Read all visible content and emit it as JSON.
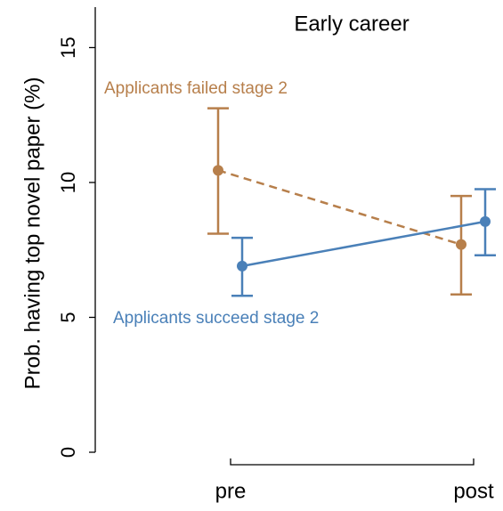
{
  "chart_data": {
    "type": "errorbar",
    "title": "Early career",
    "y_label": "Prob. having top novel paper (%)",
    "categories": [
      "pre",
      "post"
    ],
    "ylim": [
      0,
      16.5
    ],
    "yticks": [
      0,
      5,
      10,
      15
    ],
    "series": [
      {
        "name": "Applicants failed stage 2",
        "color": "#b77f4b",
        "dashed": true,
        "values": [
          10.45,
          7.7
        ],
        "lower": [
          8.1,
          5.85
        ],
        "upper": [
          12.75,
          9.5
        ]
      },
      {
        "name": "Applicants succeed stage 2",
        "color": "#4a80b8",
        "dashed": false,
        "values": [
          6.9,
          8.55
        ],
        "lower": [
          5.8,
          7.3
        ],
        "upper": [
          7.95,
          9.75
        ]
      }
    ]
  }
}
